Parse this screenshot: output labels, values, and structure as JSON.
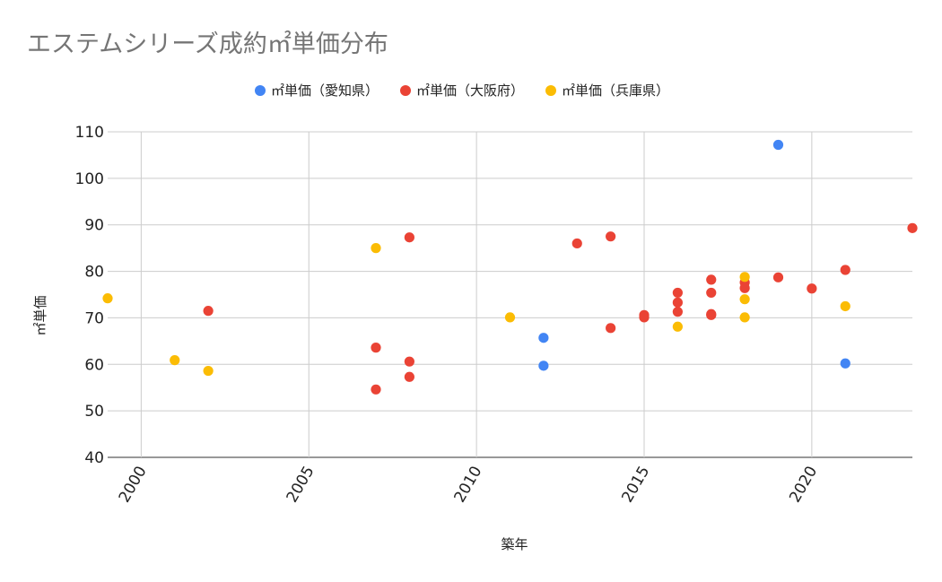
{
  "chart_data": {
    "type": "scatter",
    "title": "エステムシリーズ成約㎡単価分布",
    "xlabel": "築年",
    "ylabel": "㎡単価",
    "xlim": [
      1999,
      2023
    ],
    "ylim": [
      40,
      110
    ],
    "x_ticks": [
      2000,
      2005,
      2010,
      2015,
      2020
    ],
    "y_ticks": [
      40,
      50,
      60,
      70,
      80,
      90,
      100,
      110
    ],
    "grid": true,
    "legend_position": "top",
    "series": [
      {
        "name": "㎡単価（愛知県）",
        "color": "#4285f4",
        "points": [
          [
            2012,
            65.7
          ],
          [
            2012,
            59.7
          ],
          [
            2019,
            107.2
          ],
          [
            2021,
            60.2
          ]
        ]
      },
      {
        "name": "㎡単価（大阪府）",
        "color": "#ea4335",
        "points": [
          [
            2002,
            71.5
          ],
          [
            2007,
            63.6
          ],
          [
            2007,
            54.6
          ],
          [
            2008,
            87.3
          ],
          [
            2008,
            60.6
          ],
          [
            2008,
            57.3
          ],
          [
            2013,
            86.0
          ],
          [
            2014,
            87.5
          ],
          [
            2014,
            67.8
          ],
          [
            2015,
            70.6
          ],
          [
            2015,
            70.1
          ],
          [
            2016,
            75.4
          ],
          [
            2016,
            73.3
          ],
          [
            2016,
            71.3
          ],
          [
            2017,
            78.2
          ],
          [
            2017,
            75.4
          ],
          [
            2017,
            70.8
          ],
          [
            2017,
            70.6
          ],
          [
            2018,
            77.6
          ],
          [
            2018,
            76.4
          ],
          [
            2019,
            78.7
          ],
          [
            2020,
            76.3
          ],
          [
            2021,
            80.3
          ],
          [
            2023,
            89.3
          ]
        ]
      },
      {
        "name": "㎡単価（兵庫県）",
        "color": "#fbbc04",
        "points": [
          [
            1999,
            74.2
          ],
          [
            2001,
            60.9
          ],
          [
            2002,
            58.6
          ],
          [
            2007,
            85.0
          ],
          [
            2011,
            70.1
          ],
          [
            2016,
            68.1
          ],
          [
            2018,
            78.8
          ],
          [
            2018,
            74.0
          ],
          [
            2018,
            70.1
          ],
          [
            2021,
            72.5
          ]
        ]
      }
    ]
  }
}
